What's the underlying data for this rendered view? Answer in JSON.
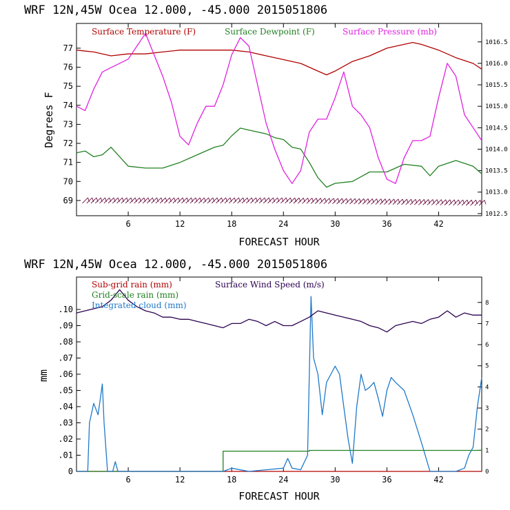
{
  "chart_data": [
    {
      "type": "line",
      "title": "WRF   12N,45W Ocea  12.000, -45.000  2015051806",
      "xlabel": "FORECAST HOUR",
      "ylabel": "Degrees F",
      "xlim": [
        0,
        47
      ],
      "ylim": [
        68.2,
        78.3
      ],
      "y2lim": [
        1012.45,
        1016.93
      ],
      "x_ticks": [
        "6",
        "12",
        "18",
        "24",
        "30",
        "36",
        "42"
      ],
      "y_ticks": [
        "69",
        "70",
        "71",
        "72",
        "73",
        "74",
        "75",
        "76",
        "77"
      ],
      "y2_ticks": [
        "1012.5",
        "1013.0",
        "1013.5",
        "1014.0",
        "1014.5",
        "1015.0",
        "1015.5",
        "1016.0",
        "1016.5"
      ],
      "wind_barbs": "wind barbs along 69 F",
      "series": [
        {
          "name": "Surface Temperature (F)",
          "color": "#b00000",
          "axis": "left",
          "x": [
            0,
            2,
            4,
            6,
            8,
            10,
            12,
            14,
            16,
            18,
            20,
            22,
            24,
            26,
            28,
            29,
            30,
            32,
            34,
            36,
            38,
            39,
            40,
            42,
            44,
            46,
            47
          ],
          "y": [
            76.9,
            76.8,
            76.6,
            76.7,
            76.7,
            76.8,
            76.9,
            76.9,
            76.9,
            76.9,
            76.8,
            76.6,
            76.4,
            76.2,
            75.8,
            75.6,
            75.8,
            76.3,
            76.6,
            77.0,
            77.2,
            77.3,
            77.2,
            76.9,
            76.5,
            76.2,
            75.9
          ]
        },
        {
          "name": "Surface Dewpoint (F)",
          "color": "#208020",
          "axis": "left",
          "x": [
            0,
            1,
            2,
            3,
            4,
            5,
            6,
            8,
            10,
            12,
            14,
            16,
            17,
            18,
            19,
            20,
            22,
            23,
            24,
            25,
            26,
            27,
            28,
            29,
            30,
            32,
            34,
            36,
            37,
            38,
            40,
            41,
            42,
            44,
            46,
            47
          ],
          "y": [
            71.5,
            71.6,
            71.3,
            71.4,
            71.8,
            71.3,
            70.8,
            70.7,
            70.7,
            71.0,
            71.4,
            71.8,
            71.9,
            72.4,
            72.8,
            72.7,
            72.5,
            72.3,
            72.2,
            71.8,
            71.7,
            71.0,
            70.2,
            69.7,
            69.9,
            70.0,
            70.5,
            70.5,
            70.7,
            70.9,
            70.8,
            70.3,
            70.8,
            71.1,
            70.8,
            70.4
          ]
        },
        {
          "name": "Surface Pressure (mb)",
          "color": "#e020e0",
          "axis": "right",
          "x": [
            0,
            1,
            2,
            3,
            4,
            5,
            6,
            7,
            8,
            9,
            10,
            11,
            12,
            13,
            14,
            15,
            16,
            17,
            18,
            19,
            20,
            21,
            22,
            23,
            24,
            25,
            26,
            27,
            28,
            29,
            30,
            31,
            32,
            33,
            34,
            35,
            36,
            37,
            38,
            39,
            40,
            41,
            42,
            43,
            44,
            45,
            46,
            47
          ],
          "y": [
            1015.0,
            1014.9,
            1015.4,
            1015.8,
            1015.9,
            1016.0,
            1016.1,
            1016.4,
            1016.7,
            1016.2,
            1015.7,
            1015.1,
            1014.3,
            1014.1,
            1014.6,
            1015.0,
            1015.0,
            1015.5,
            1016.2,
            1016.6,
            1016.4,
            1015.5,
            1014.6,
            1014.0,
            1013.5,
            1013.2,
            1013.5,
            1014.4,
            1014.7,
            1014.7,
            1015.2,
            1015.8,
            1015.0,
            1014.8,
            1014.5,
            1013.8,
            1013.3,
            1013.2,
            1013.8,
            1014.2,
            1014.2,
            1014.3,
            1015.2,
            1016.0,
            1015.7,
            1014.8,
            1014.5,
            1014.2
          ]
        }
      ]
    },
    {
      "type": "line",
      "title": "WRF   12N,45W Ocea  12.000, -45.000  2015051806",
      "xlabel": "FORECAST HOUR",
      "ylabel": "mm",
      "xlim": [
        0,
        47
      ],
      "ylim": [
        0,
        0.12
      ],
      "y2lim": [
        0,
        9.2
      ],
      "x_ticks": [
        "6",
        "12",
        "18",
        "24",
        "30",
        "36",
        "42"
      ],
      "y_ticks": [
        "0",
        ".01",
        ".02",
        ".03",
        ".04",
        ".05",
        ".06",
        ".07",
        ".08",
        ".09",
        ".10"
      ],
      "y2_ticks": [
        "0",
        "1",
        "2",
        "3",
        "4",
        "5",
        "6",
        "7",
        "8"
      ],
      "series": [
        {
          "name": "Sub-grid rain (mm)",
          "color": "#b00000",
          "axis": "left",
          "x": [
            0,
            47
          ],
          "y": [
            0,
            0
          ]
        },
        {
          "name": "Grid-scale rain (mm)",
          "color": "#208020",
          "axis": "left",
          "x": [
            0,
            17,
            17,
            27,
            27,
            47
          ],
          "y": [
            0,
            0,
            0.0125,
            0.0125,
            0.013,
            0.013
          ]
        },
        {
          "name": "Integrated cloud (mm)",
          "color": "#1e78c8",
          "axis": "left",
          "x": [
            0,
            1.3,
            1.5,
            2,
            2.5,
            3,
            3.2,
            3.6,
            3.8,
            4.2,
            4.5,
            4.8,
            5,
            17,
            18,
            20,
            22,
            24,
            24.5,
            25,
            26,
            26.8,
            27,
            27.2,
            27.5,
            28,
            28.5,
            29,
            29.5,
            30,
            30.5,
            31,
            31.5,
            32,
            32.5,
            33,
            33.5,
            34,
            34.5,
            35,
            35.5,
            36,
            36.5,
            37,
            38,
            39,
            40,
            41,
            42,
            42.5,
            43,
            44,
            45,
            45.5,
            46,
            46.5,
            47
          ],
          "y": [
            0,
            0,
            0.03,
            0.042,
            0.035,
            0.054,
            0.03,
            0,
            0,
            0,
            0.006,
            0,
            0,
            0,
            0.002,
            0,
            0.001,
            0.002,
            0.008,
            0.002,
            0.001,
            0.01,
            0.06,
            0.108,
            0.07,
            0.06,
            0.035,
            0.055,
            0.06,
            0.065,
            0.06,
            0.04,
            0.02,
            0.005,
            0.04,
            0.06,
            0.05,
            0.052,
            0.055,
            0.045,
            0.034,
            0.05,
            0.058,
            0.055,
            0.05,
            0.035,
            0.018,
            0,
            0,
            0,
            0,
            0,
            0.002,
            0.01,
            0.015,
            0.04,
            0.058
          ]
        },
        {
          "name": "Surface Wind Speed (m/s)",
          "color": "#2a0050",
          "axis": "right",
          "x": [
            0,
            1,
            2,
            3,
            4,
            5,
            6,
            7,
            8,
            9,
            10,
            11,
            12,
            13,
            14,
            15,
            16,
            17,
            18,
            19,
            20,
            21,
            22,
            23,
            24,
            25,
            26,
            27,
            28,
            29,
            30,
            31,
            32,
            33,
            34,
            35,
            36,
            37,
            38,
            39,
            40,
            41,
            42,
            43,
            44,
            45,
            46,
            47
          ],
          "y": [
            7.5,
            7.6,
            7.7,
            7.8,
            8.1,
            8.6,
            8.1,
            7.8,
            7.6,
            7.5,
            7.3,
            7.3,
            7.2,
            7.2,
            7.1,
            7.0,
            6.9,
            6.8,
            7.0,
            7.0,
            7.2,
            7.1,
            6.9,
            7.1,
            6.9,
            6.9,
            7.1,
            7.3,
            7.6,
            7.5,
            7.4,
            7.3,
            7.2,
            7.1,
            6.9,
            6.8,
            6.6,
            6.9,
            7.0,
            7.1,
            7.0,
            7.2,
            7.3,
            7.6,
            7.3,
            7.5,
            7.4,
            7.4
          ]
        }
      ]
    }
  ]
}
